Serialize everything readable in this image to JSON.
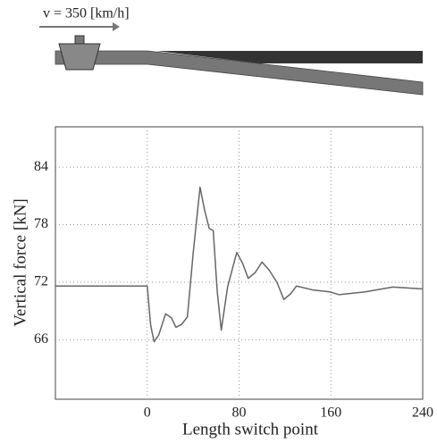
{
  "chart_data": {
    "type": "line",
    "annotation": "v = 350 [km/h]",
    "xlabel": "Length switch point",
    "ylabel": "Vertical force [kN]",
    "x": [
      -80,
      0,
      3,
      6,
      10,
      16,
      21,
      25,
      30,
      35,
      40,
      46,
      50,
      54,
      57.5,
      61,
      64.5,
      70,
      78,
      83,
      88,
      94,
      100,
      106,
      113,
      119,
      125,
      130,
      144,
      159,
      167,
      190,
      214,
      240
    ],
    "series": [
      {
        "color": "#666666",
        "values": [
          71.6,
          71.6,
          67.5,
          65.8,
          66.5,
          68.7,
          68.3,
          67.3,
          67.6,
          68.4,
          75,
          81.9,
          79.5,
          77.6,
          77.4,
          71,
          67,
          71.5,
          75.1,
          74,
          72.4,
          73,
          74.1,
          73.3,
          72,
          70.2,
          70.8,
          71.6,
          71.2,
          71,
          70.7,
          71,
          71.5,
          71.3
        ]
      }
    ],
    "xlim": [
      -80,
      240
    ],
    "xticks": [
      0,
      80,
      160,
      240
    ],
    "ylim": [
      59.8,
      88.2
    ],
    "yticks": [
      66,
      72,
      78,
      84
    ],
    "grid": true
  }
}
